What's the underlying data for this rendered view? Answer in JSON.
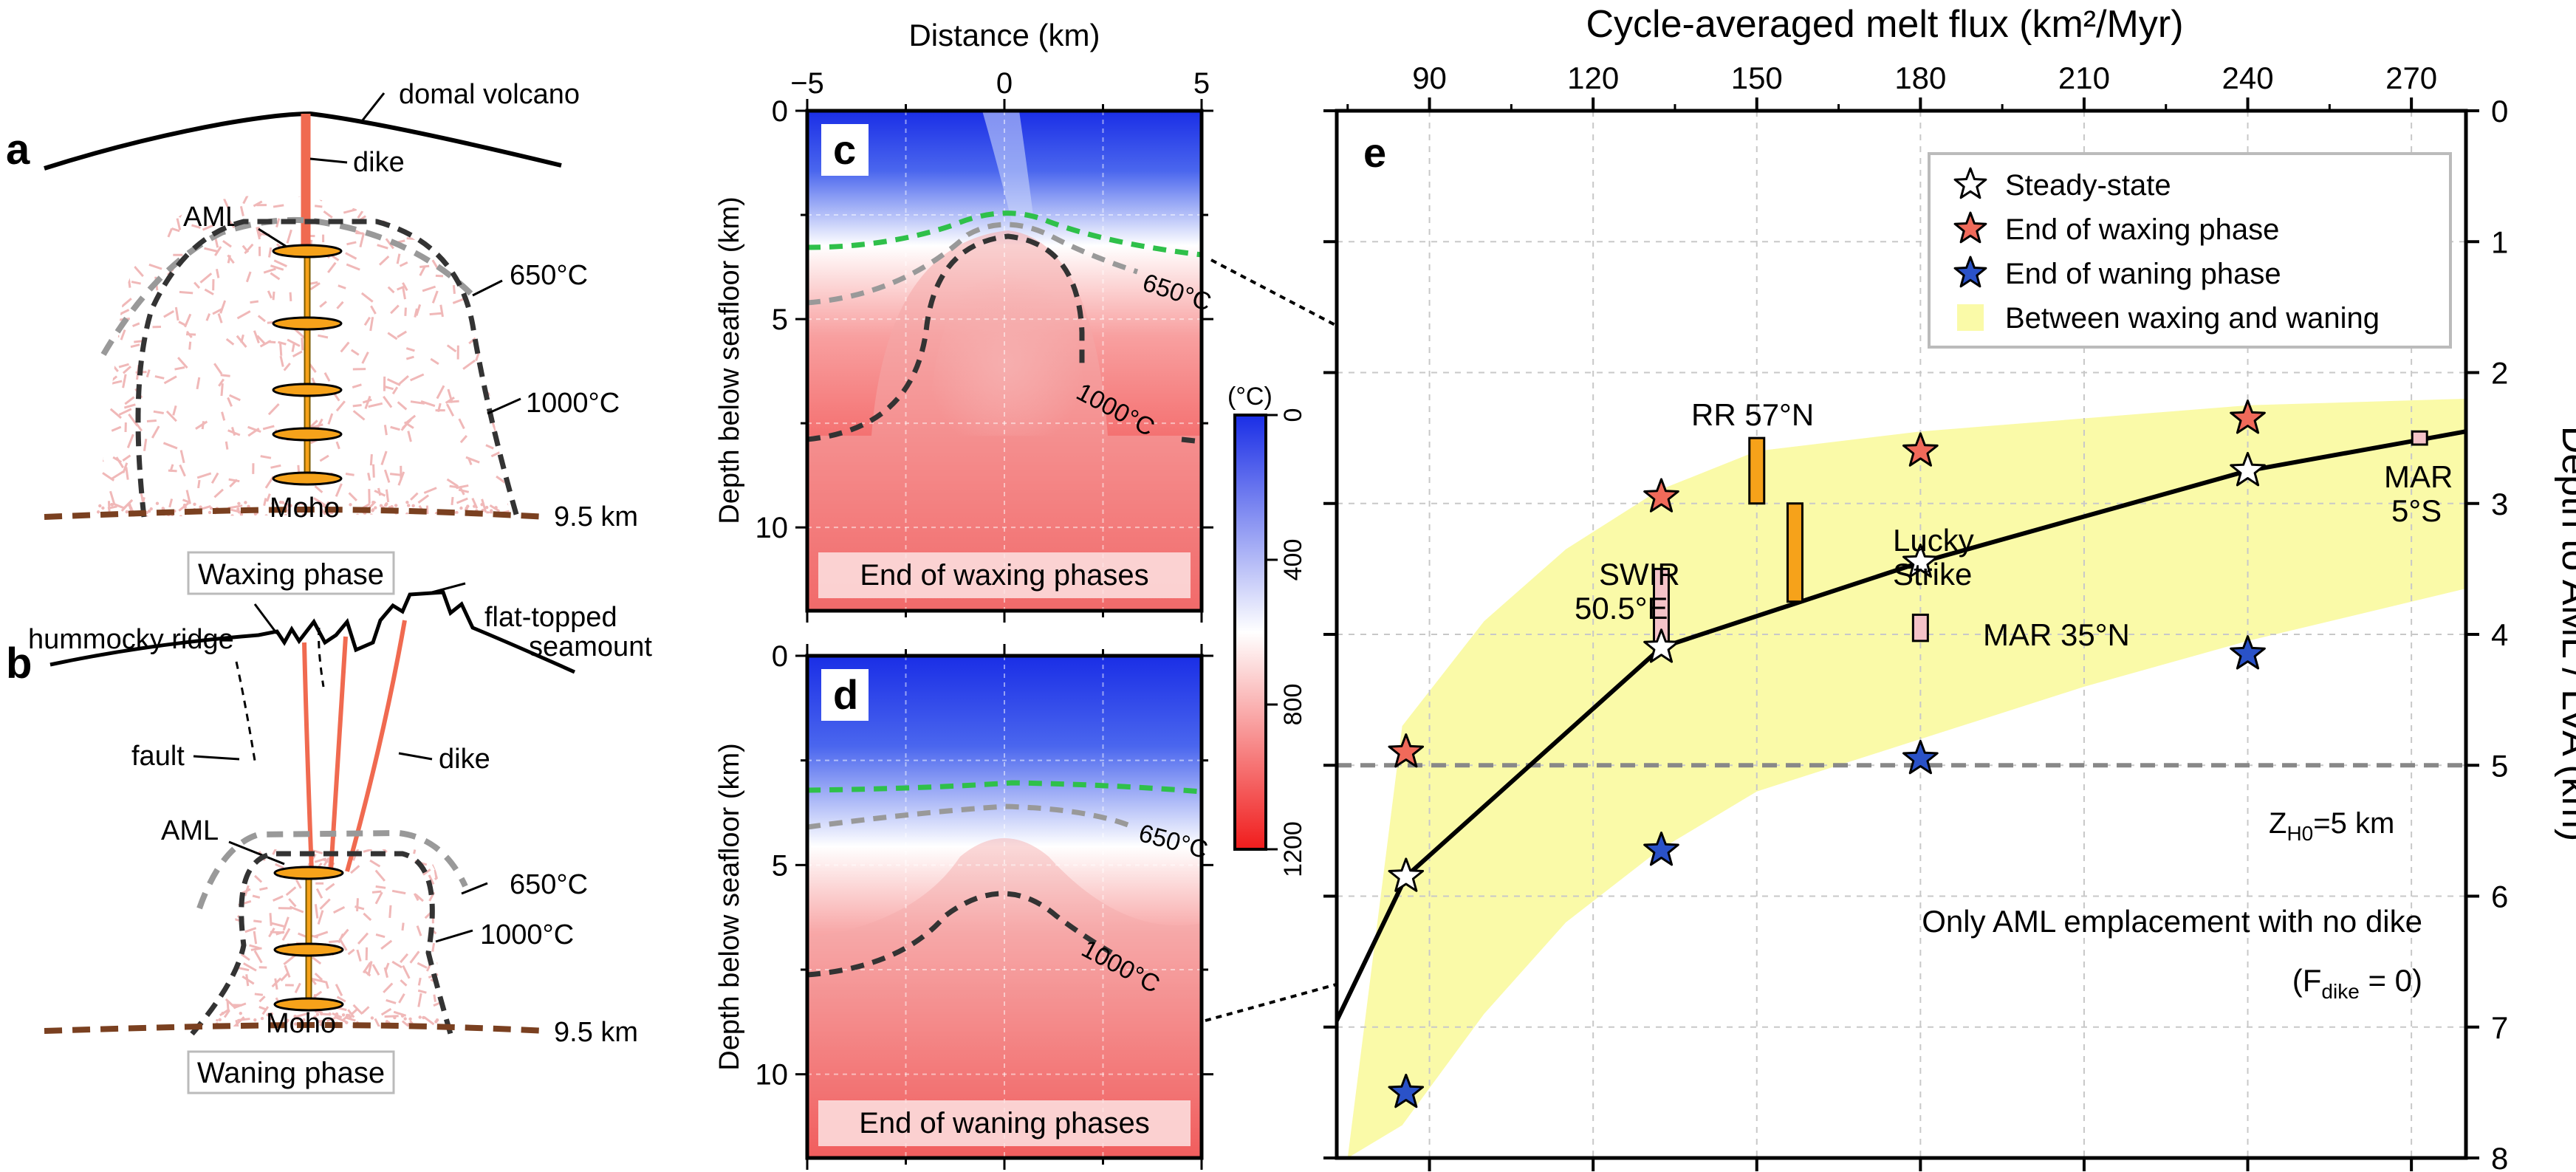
{
  "panels": {
    "a": {
      "letter": "a",
      "labels": {
        "volcano": "domal volcano",
        "dike": "dike",
        "aml": "AML",
        "iso650": "650°C",
        "iso1000": "1000°C",
        "moho": "Moho",
        "moho_depth": "9.5 km"
      },
      "caption": "Waxing phase"
    },
    "b": {
      "letter": "b",
      "labels": {
        "ridge": "hummocky ridge",
        "seamount": [
          "flat-topped",
          "seamount"
        ],
        "fault": "fault",
        "dike": "dike",
        "aml": "AML",
        "iso650": "650°C",
        "iso1000": "1000°C",
        "moho": "Moho",
        "moho_depth": "9.5 km"
      },
      "caption": "Waning phase"
    },
    "c": {
      "letter": "c",
      "caption": "End of waxing phases",
      "iso650": "650°C",
      "iso1000": "1000°C"
    },
    "d": {
      "letter": "d",
      "caption": "End of waning phases",
      "iso650": "650°C",
      "iso1000": "1000°C"
    },
    "e": {
      "letter": "e"
    }
  },
  "thermal": {
    "xlabel": "Distance (km)",
    "ylabel": "Depth below seafloor (km)",
    "xticks": [
      "−5",
      "0",
      "5"
    ],
    "yticks": [
      "0",
      "5",
      "10"
    ],
    "colorbar": {
      "unit": "(°C)",
      "ticks": [
        "0",
        "400",
        "800",
        "1200"
      ],
      "range": [
        0,
        1200
      ],
      "colors": [
        "#1a2ee6",
        "#ffffff",
        "#f01c1c"
      ]
    }
  },
  "colors": {
    "waxing": "#f06a5a",
    "waning": "#2a52c8",
    "steady": "#ffffff",
    "band": "#fafaa8",
    "orange_bar": "#f6a21a",
    "pink_bar": "#f4c3c8",
    "gray_dash": "#888888",
    "green_dash": "#2fc04a",
    "moho": "#7a4020",
    "dike": "#f06a50",
    "aml": "#f6a21a"
  },
  "chart_data": {
    "type": "scatter",
    "title": "",
    "xlabel": "Cycle-averaged melt flux (km²/Myr)",
    "ylabel": "Depth to AML / LVA (km)",
    "xlim": [
      73,
      280
    ],
    "ylim": [
      0,
      8
    ],
    "y_inverted": true,
    "x_axis_position": "top",
    "y_axis_position": "right",
    "xticks": [
      90,
      120,
      150,
      180,
      210,
      240,
      270
    ],
    "yticks": [
      0,
      1,
      2,
      3,
      4,
      5,
      6,
      7,
      8
    ],
    "grid": true,
    "legend_position": "top-right",
    "legend": [
      "Steady-state",
      "End of waxing phase",
      "End of waning phase",
      "Between waxing and waning"
    ],
    "series": [
      {
        "name": "Steady-state",
        "x": [
          73,
          85.7,
          132.5,
          180,
          240,
          280
        ],
        "y": [
          6.95,
          5.85,
          4.1,
          3.45,
          2.75,
          2.45
        ]
      },
      {
        "name": "End of waxing phase",
        "x": [
          85.7,
          132.5,
          180,
          240
        ],
        "y": [
          4.9,
          2.95,
          2.6,
          2.35
        ]
      },
      {
        "name": "End of waning phase",
        "x": [
          85.7,
          132.5,
          180,
          240
        ],
        "y": [
          7.5,
          5.65,
          4.95,
          4.15
        ]
      }
    ],
    "band": {
      "name": "Between waxing and waning",
      "upper": {
        "x": [
          85,
          100,
          115,
          132,
          150,
          180,
          210,
          240,
          280
        ],
        "y": [
          4.7,
          3.9,
          3.35,
          2.9,
          2.6,
          2.45,
          2.35,
          2.25,
          2.2
        ]
      },
      "lower": {
        "x": [
          75,
          85,
          100,
          115,
          132,
          150,
          180,
          210,
          240,
          280
        ],
        "y": [
          8.0,
          7.75,
          6.9,
          6.2,
          5.65,
          5.2,
          4.8,
          4.4,
          4.05,
          3.65
        ]
      }
    },
    "observations": [
      {
        "label": "RR 57°N",
        "x": 150,
        "y": [
          2.5,
          3.0
        ],
        "color": "orange"
      },
      {
        "label": "Lucky Strike",
        "x": 157,
        "y": [
          3.0,
          3.75
        ],
        "color": "orange"
      },
      {
        "label": "SWIR 50.5°E",
        "x": 132.5,
        "y": [
          3.5,
          4.15
        ],
        "color": "pink"
      },
      {
        "label": "MAR 35°N",
        "x": 180,
        "y": [
          3.85,
          4.05
        ],
        "color": "pink"
      },
      {
        "label": "MAR 5°S",
        "x": 271.5,
        "y": [
          2.45,
          2.55
        ],
        "color": "pink"
      }
    ],
    "reference_line": {
      "label": "Z_H0=5 km",
      "y": 5
    },
    "annotation": [
      "Only AML emplacement with no dike",
      "(F_dike = 0)"
    ]
  }
}
